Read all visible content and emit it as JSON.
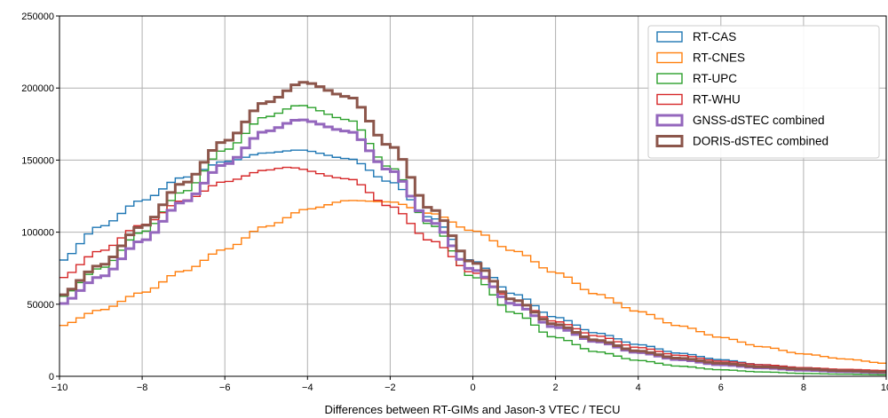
{
  "chart_data": {
    "type": "line",
    "style": "step",
    "xlabel": "Differences between RT-GIMs and Jason-3 VTEC / TECU",
    "ylabel": "",
    "xlim": [
      -10,
      10
    ],
    "ylim": [
      0,
      250000
    ],
    "xticks": [
      "-10",
      "-8",
      "-6",
      "-4",
      "-2",
      "0",
      "2",
      "4",
      "6",
      "8",
      "10"
    ],
    "yticks": [
      "0",
      "50000",
      "100000",
      "150000",
      "200000",
      "250000"
    ],
    "grid": true,
    "legend_position": "top-right",
    "series": [
      {
        "name": "RT-CAS",
        "color": "#1f77b4",
        "points": [
          [
            -10,
            80000
          ],
          [
            -9,
            104000
          ],
          [
            -8,
            122000
          ],
          [
            -7,
            138000
          ],
          [
            -6,
            149000
          ],
          [
            -5,
            155000
          ],
          [
            -4.2,
            157000
          ],
          [
            -3,
            151000
          ],
          [
            -2,
            135000
          ],
          [
            -1,
            110000
          ],
          [
            0,
            80000
          ],
          [
            1,
            57000
          ],
          [
            2,
            41000
          ],
          [
            3,
            30000
          ],
          [
            4,
            22000
          ],
          [
            5,
            16000
          ],
          [
            6,
            11500
          ],
          [
            7,
            8000
          ],
          [
            8,
            6000
          ],
          [
            9,
            4500
          ],
          [
            10,
            3500
          ]
        ]
      },
      {
        "name": "RT-CNES",
        "color": "#ff7f0e",
        "points": [
          [
            -10,
            35000
          ],
          [
            -9,
            46000
          ],
          [
            -8,
            58000
          ],
          [
            -7,
            73000
          ],
          [
            -6,
            88000
          ],
          [
            -5,
            104000
          ],
          [
            -4,
            116000
          ],
          [
            -3,
            122000
          ],
          [
            -2,
            121000
          ],
          [
            -1,
            113000
          ],
          [
            0,
            101000
          ],
          [
            1,
            87000
          ],
          [
            2,
            72000
          ],
          [
            3,
            57000
          ],
          [
            4,
            45000
          ],
          [
            5,
            35000
          ],
          [
            6,
            27000
          ],
          [
            7,
            20500
          ],
          [
            8,
            15500
          ],
          [
            9,
            12000
          ],
          [
            10,
            9000
          ]
        ]
      },
      {
        "name": "RT-UPC",
        "color": "#2ca02c",
        "points": [
          [
            -10,
            55000
          ],
          [
            -9,
            75000
          ],
          [
            -8,
            100000
          ],
          [
            -7,
            128000
          ],
          [
            -6,
            157000
          ],
          [
            -5,
            180000
          ],
          [
            -4.2,
            188000
          ],
          [
            -3,
            178000
          ],
          [
            -2,
            145000
          ],
          [
            -1,
            105000
          ],
          [
            0,
            69000
          ],
          [
            1,
            44000
          ],
          [
            2,
            27000
          ],
          [
            3,
            17000
          ],
          [
            4,
            11000
          ],
          [
            5,
            7000
          ],
          [
            6,
            4500
          ],
          [
            7,
            3000
          ],
          [
            8,
            2000
          ],
          [
            9,
            1500
          ],
          [
            10,
            1000
          ]
        ]
      },
      {
        "name": "RT-WHU",
        "color": "#d62728",
        "points": [
          [
            -10,
            68000
          ],
          [
            -9,
            87000
          ],
          [
            -8,
            105000
          ],
          [
            -7,
            122000
          ],
          [
            -6,
            135000
          ],
          [
            -5,
            143000
          ],
          [
            -4.5,
            145000
          ],
          [
            -3,
            137000
          ],
          [
            -2,
            118000
          ],
          [
            -1,
            94000
          ],
          [
            0,
            72000
          ],
          [
            1,
            53000
          ],
          [
            2,
            38000
          ],
          [
            3,
            28000
          ],
          [
            4,
            20000
          ],
          [
            5,
            14500
          ],
          [
            6,
            10500
          ],
          [
            7,
            8000
          ],
          [
            8,
            6000
          ],
          [
            9,
            4800
          ],
          [
            10,
            4000
          ]
        ]
      },
      {
        "name": "GNSS-dSTEC combined",
        "color": "#9467bd",
        "points": [
          [
            -10,
            50000
          ],
          [
            -9,
            69000
          ],
          [
            -8,
            94000
          ],
          [
            -7,
            121000
          ],
          [
            -6,
            147000
          ],
          [
            -5,
            170000
          ],
          [
            -4.2,
            178000
          ],
          [
            -3,
            170000
          ],
          [
            -2,
            143000
          ],
          [
            -1,
            107000
          ],
          [
            0,
            74000
          ],
          [
            1,
            50000
          ],
          [
            2,
            34000
          ],
          [
            3,
            24000
          ],
          [
            4,
            16500
          ],
          [
            5,
            11500
          ],
          [
            6,
            8000
          ],
          [
            7,
            5800
          ],
          [
            8,
            4200
          ],
          [
            9,
            3200
          ],
          [
            10,
            2500
          ]
        ]
      },
      {
        "name": "DORIS-dSTEC combined",
        "color": "#8c564b",
        "points": [
          [
            -10,
            56000
          ],
          [
            -9,
            77000
          ],
          [
            -8,
            104000
          ],
          [
            -7,
            134000
          ],
          [
            -6,
            163000
          ],
          [
            -5,
            190000
          ],
          [
            -4.1,
            204000
          ],
          [
            -3,
            194000
          ],
          [
            -2,
            160000
          ],
          [
            -1,
            116000
          ],
          [
            0,
            79000
          ],
          [
            1,
            53000
          ],
          [
            2,
            36000
          ],
          [
            3,
            25000
          ],
          [
            4,
            17500
          ],
          [
            5,
            12500
          ],
          [
            6,
            9000
          ],
          [
            7,
            6500
          ],
          [
            8,
            5000
          ],
          [
            9,
            3800
          ],
          [
            10,
            3000
          ]
        ]
      }
    ]
  }
}
